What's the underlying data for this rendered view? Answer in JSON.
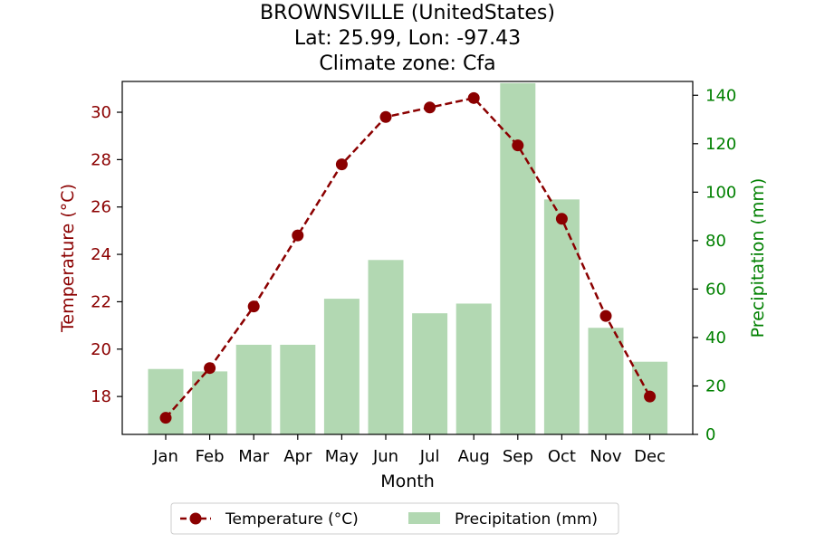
{
  "chart_data": {
    "type": "bar+line",
    "title_lines": [
      "BROWNSVILLE (UnitedStates)",
      "Lat: 25.99, Lon: -97.43",
      "Climate zone: Cfa"
    ],
    "categories": [
      "Jan",
      "Feb",
      "Mar",
      "Apr",
      "May",
      "Jun",
      "Jul",
      "Aug",
      "Sep",
      "Oct",
      "Nov",
      "Dec"
    ],
    "xlabel": "Month",
    "series": [
      {
        "name": "Temperature (°C)",
        "axis": "left",
        "kind": "line",
        "values": [
          17.1,
          19.2,
          21.8,
          24.8,
          27.8,
          29.8,
          30.2,
          30.6,
          28.6,
          25.5,
          21.4,
          18.0
        ]
      },
      {
        "name": "Precipitation (mm)",
        "axis": "right",
        "kind": "bar",
        "values": [
          27,
          26,
          37,
          37,
          56,
          72,
          50,
          54,
          145,
          97,
          44,
          30
        ]
      }
    ],
    "left_axis": {
      "label": "Temperature (°C)",
      "ylim": [
        16.4,
        31.3
      ],
      "ticks": [
        18,
        20,
        22,
        24,
        26,
        28,
        30
      ]
    },
    "right_axis": {
      "label": "Precipitation (mm)",
      "ylim": [
        0,
        145.7
      ],
      "ticks": [
        0,
        20,
        40,
        60,
        80,
        100,
        120,
        140
      ]
    },
    "legend": {
      "placement": "bottom-center",
      "entries": [
        "Temperature (°C)",
        "Precipitation (mm)"
      ]
    },
    "grid": false,
    "colors": {
      "temperature": "#8b0000",
      "precipitation_bar": "#b2d8b2",
      "right_axis": "#008000",
      "left_axis": "#8b0000"
    }
  }
}
